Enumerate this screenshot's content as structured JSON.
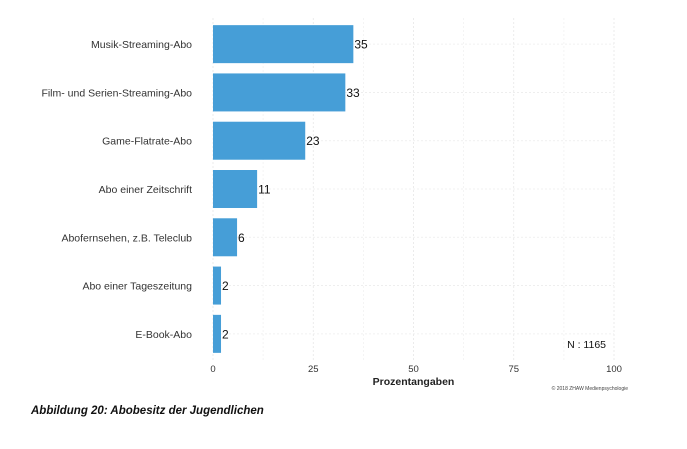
{
  "chart_data": {
    "type": "bar",
    "orientation": "horizontal",
    "categories": [
      "Musik-Streaming-Abo",
      "Film- und Serien-Streaming-Abo",
      "Game-Flatrate-Abo",
      "Abo einer Zeitschrift",
      "Abofernsehen, z.B. Teleclub",
      "Abo einer Tageszeitung",
      "E-Book-Abo"
    ],
    "values": [
      35,
      33,
      23,
      11,
      6,
      2,
      2
    ],
    "value_labels": [
      "35",
      "33",
      "23",
      "11",
      "6",
      "2",
      "2"
    ],
    "xlabel": "Prozentangaben",
    "xlim": [
      0,
      100
    ],
    "xticks": [
      "0",
      "25",
      "50",
      "75",
      "100"
    ],
    "grid": true,
    "bar_color": "#469ED7",
    "annotation": "N : 1165",
    "source_note": "© 2018 ZHAW Medienpsychologie"
  },
  "caption": "Abbildung 20: Abobesitz der Jugendlichen"
}
